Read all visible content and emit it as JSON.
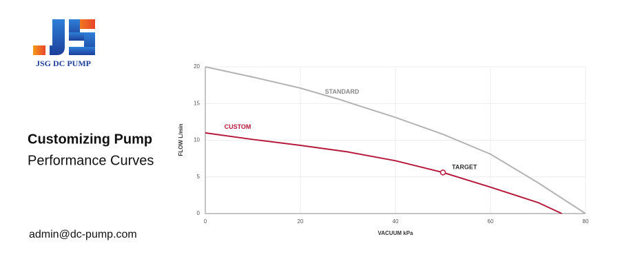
{
  "brand": "JSG DC PUMP",
  "heading": {
    "line1": "Customizing Pump",
    "line2": "Performance Curves"
  },
  "email": "admin@dc-pump.com",
  "chart_data": {
    "type": "line",
    "xlabel": "VACUUM kPa",
    "ylabel": "FLOW L/min",
    "xlim": [
      0,
      80
    ],
    "ylim": [
      0,
      20
    ],
    "xticks": [
      0,
      20,
      40,
      60,
      80
    ],
    "yticks": [
      0,
      5,
      10,
      15,
      20
    ],
    "grid": true,
    "series": [
      {
        "name": "STANDARD",
        "color": "#b3b3b3",
        "x": [
          0,
          10,
          20,
          28,
          40,
          50,
          60,
          70,
          80
        ],
        "values": [
          20,
          18.6,
          17.1,
          15.6,
          13.1,
          10.8,
          8.1,
          4.2,
          0
        ]
      },
      {
        "name": "CUSTOM",
        "color": "#b5173a",
        "x": [
          0,
          10,
          20,
          30,
          40,
          50,
          60,
          70,
          75
        ],
        "values": [
          11,
          10.1,
          9.3,
          8.4,
          7.2,
          5.6,
          3.6,
          1.5,
          0
        ]
      }
    ],
    "annotations": [
      {
        "text": "TARGET",
        "x": 50,
        "y": 5.6
      }
    ]
  }
}
